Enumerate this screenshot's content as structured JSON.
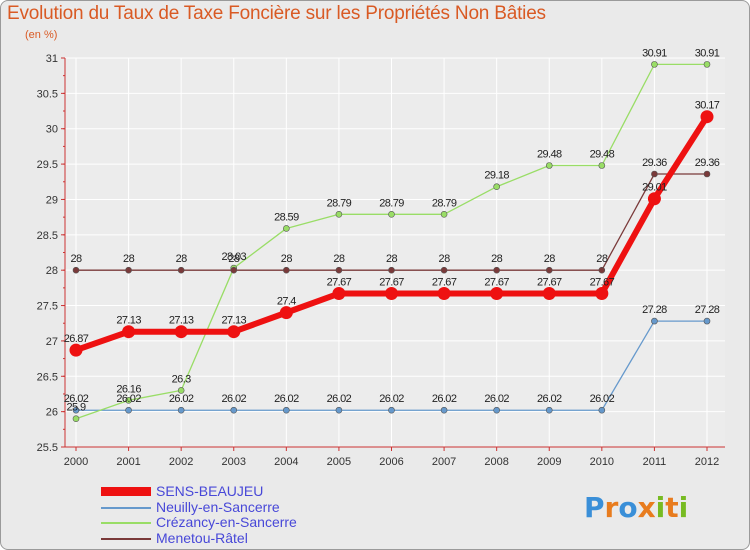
{
  "title": "Evolution du Taux de Taxe Foncière sur les Propriétés Non Bâties",
  "unit_label": "(en %)",
  "logo_text": "Proxiti",
  "chart_data": {
    "type": "line",
    "title": "Evolution du Taux de Taxe Foncière sur les Propriétés Non Bâties",
    "ylabel": "(en %)",
    "xlabel": "",
    "x": [
      "2000",
      "2001",
      "2002",
      "2003",
      "2004",
      "2005",
      "2006",
      "2007",
      "2008",
      "2009",
      "2010",
      "2011",
      "2012"
    ],
    "ylim": [
      25.5,
      31
    ],
    "yticks": [
      "25.5",
      "26",
      "26.5",
      "27",
      "27.5",
      "28",
      "28.5",
      "29",
      "29.5",
      "30",
      "30.5",
      "31"
    ],
    "grid": true,
    "legend_position": "bottom-left",
    "series": [
      {
        "name": "SENS-BEAUJEU",
        "color": "#ee1111",
        "values": [
          26.87,
          27.13,
          27.13,
          27.13,
          27.4,
          27.67,
          27.67,
          27.67,
          27.67,
          27.67,
          27.67,
          29.01,
          30.17
        ],
        "labels": [
          "26.87",
          "27.13",
          "27.13",
          "27.13",
          "27.4",
          "27.67",
          "27.67",
          "27.67",
          "27.67",
          "27.67",
          "27.67",
          "29.01",
          "30.17"
        ]
      },
      {
        "name": "Neuilly-en-Sancerre",
        "color": "#6699cc",
        "values": [
          26.02,
          26.02,
          26.02,
          26.02,
          26.02,
          26.02,
          26.02,
          26.02,
          26.02,
          26.02,
          26.02,
          27.28,
          27.28
        ],
        "labels": [
          "26.02",
          "26.02",
          "26.02",
          "26.02",
          "26.02",
          "26.02",
          "26.02",
          "26.02",
          "26.02",
          "26.02",
          "26.02",
          "27.28",
          "27.28"
        ]
      },
      {
        "name": "Crézancy-en-Sancerre",
        "color": "#99dd66",
        "values": [
          25.9,
          26.16,
          26.3,
          28.03,
          28.59,
          28.79,
          28.79,
          28.79,
          29.18,
          29.48,
          29.48,
          30.91,
          30.91
        ],
        "labels": [
          "25.9",
          "26.16",
          "26.3",
          "28.03",
          "28.59",
          "28.79",
          "28.79",
          "28.79",
          "29.18",
          "29.48",
          "29.48",
          "30.91",
          "30.91"
        ]
      },
      {
        "name": "Menetou-Râtel",
        "color": "#7a3a3a",
        "values": [
          28,
          28,
          28,
          28,
          28,
          28,
          28,
          28,
          28,
          28,
          28,
          29.36,
          29.36
        ],
        "labels": [
          "28",
          "28",
          "28",
          "28",
          "28",
          "28",
          "28",
          "28",
          "28",
          "28",
          "28",
          "29.36",
          "29.36"
        ]
      }
    ]
  }
}
